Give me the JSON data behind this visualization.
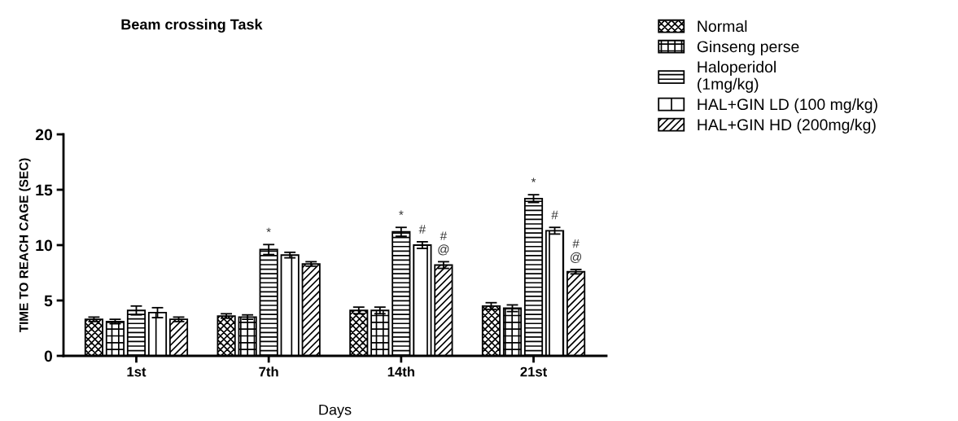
{
  "chart_data": {
    "type": "bar",
    "title": "Beam crossing Task",
    "xlabel": "Days",
    "ylabel": "TIME TO REACH CAGE (SEC)",
    "categories": [
      "1st",
      "7th",
      "14th",
      "21st"
    ],
    "series": [
      {
        "name": "Normal",
        "color": "#000000",
        "values": [
          3.3,
          3.6,
          4.1,
          4.5
        ],
        "errors": [
          0.2,
          0.2,
          0.3,
          0.3
        ]
      },
      {
        "name": "Ginseng perse",
        "color": "#000000",
        "values": [
          3.1,
          3.5,
          4.1,
          4.3
        ],
        "errors": [
          0.2,
          0.2,
          0.3,
          0.3
        ]
      },
      {
        "name": "Haloperidol\n(1mg/kg)",
        "color": "#000000",
        "values": [
          4.1,
          9.6,
          11.2,
          14.2
        ],
        "errors": [
          0.4,
          0.45,
          0.4,
          0.35
        ],
        "value_labels": [
          null,
          "*",
          "*",
          "*"
        ]
      },
      {
        "name": "HAL+GIN LD (100 mg/kg)",
        "color": "#000000",
        "values": [
          3.9,
          9.1,
          10.0,
          11.3
        ],
        "errors": [
          0.45,
          0.25,
          0.3,
          0.3
        ],
        "value_labels": [
          null,
          null,
          "#",
          "#"
        ]
      },
      {
        "name": "HAL+GIN HD (200mg/kg)",
        "color": "#000000",
        "values": [
          3.3,
          8.3,
          8.2,
          7.6
        ],
        "errors": [
          0.2,
          0.2,
          0.3,
          0.2
        ],
        "value_labels": [
          null,
          null,
          "#\n@",
          "#\n@"
        ]
      }
    ],
    "ylim": [
      0,
      20
    ],
    "yticks": [
      0,
      5,
      10,
      15,
      20
    ],
    "grid": false,
    "legend": "top right"
  }
}
